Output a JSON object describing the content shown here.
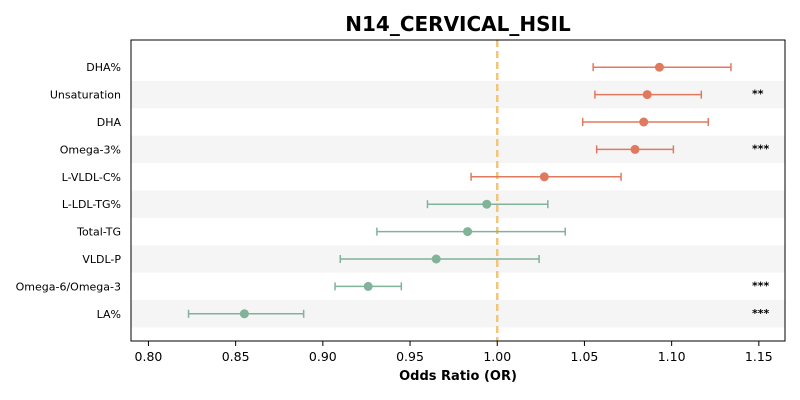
{
  "chart_data": {
    "type": "forest",
    "title": "N14_CERVICAL_HSIL",
    "xlabel": "Odds Ratio (OR)",
    "xlim": [
      0.79,
      1.165
    ],
    "xticks": [
      0.8,
      0.85,
      0.9,
      0.95,
      1.0,
      1.05,
      1.1,
      1.15
    ],
    "xtick_labels": [
      "0.80",
      "0.85",
      "0.90",
      "0.95",
      "1.00",
      "1.05",
      "1.10",
      "1.15"
    ],
    "reference_line": 1.0,
    "colors": {
      "positive": "#e07a5f",
      "negative": "#81b29a",
      "reference": "#f2c57c",
      "band": "#f5f5f5"
    },
    "rows": [
      {
        "label": "DHA%",
        "or": 1.093,
        "lo": 1.055,
        "hi": 1.134,
        "sig": ""
      },
      {
        "label": "Unsaturation",
        "or": 1.086,
        "lo": 1.056,
        "hi": 1.117,
        "sig": "**"
      },
      {
        "label": "DHA",
        "or": 1.084,
        "lo": 1.049,
        "hi": 1.121,
        "sig": ""
      },
      {
        "label": "Omega-3%",
        "or": 1.079,
        "lo": 1.057,
        "hi": 1.101,
        "sig": "***"
      },
      {
        "label": "L-VLDL-C%",
        "or": 1.027,
        "lo": 0.985,
        "hi": 1.071,
        "sig": ""
      },
      {
        "label": "L-LDL-TG%",
        "or": 0.994,
        "lo": 0.96,
        "hi": 1.029,
        "sig": ""
      },
      {
        "label": "Total-TG",
        "or": 0.983,
        "lo": 0.931,
        "hi": 1.039,
        "sig": ""
      },
      {
        "label": "VLDL-P",
        "or": 0.965,
        "lo": 0.91,
        "hi": 1.024,
        "sig": ""
      },
      {
        "label": "Omega-6/Omega-3",
        "or": 0.926,
        "lo": 0.907,
        "hi": 0.945,
        "sig": "***"
      },
      {
        "label": "LA%",
        "or": 0.855,
        "lo": 0.823,
        "hi": 0.889,
        "sig": "***"
      }
    ]
  }
}
